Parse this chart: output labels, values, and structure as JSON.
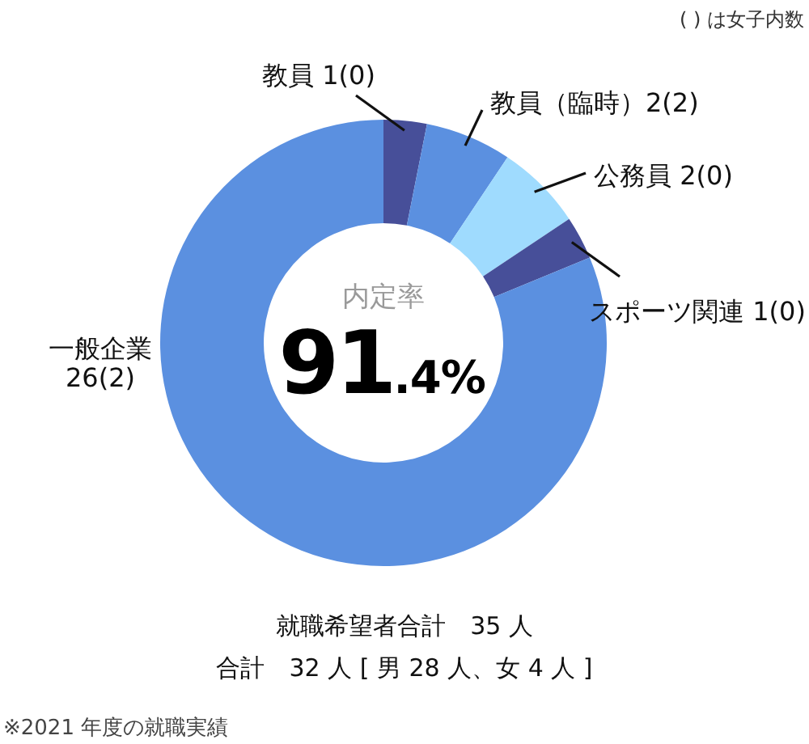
{
  "chart_data": {
    "type": "donut",
    "categories": [
      "教員",
      "教員（臨時）",
      "公務員",
      "スポーツ関連",
      "一般企業"
    ],
    "values": [
      1,
      2,
      2,
      1,
      26
    ],
    "value_labels": [
      "1(0)",
      "2(2)",
      "2(0)",
      "1(0)",
      "26(2)"
    ],
    "colors": [
      "#474f99",
      "#5b90e0",
      "#9fdbfe",
      "#474f99",
      "#5b90e0"
    ],
    "annotations": [
      "( ) は女子内数",
      "内定率",
      "91.4%",
      "就職希望者合計　35 人",
      "合計　32 人 [ 男 28 人、女 4 人 ]",
      "※2021 年度の就職実績"
    ]
  }
}
